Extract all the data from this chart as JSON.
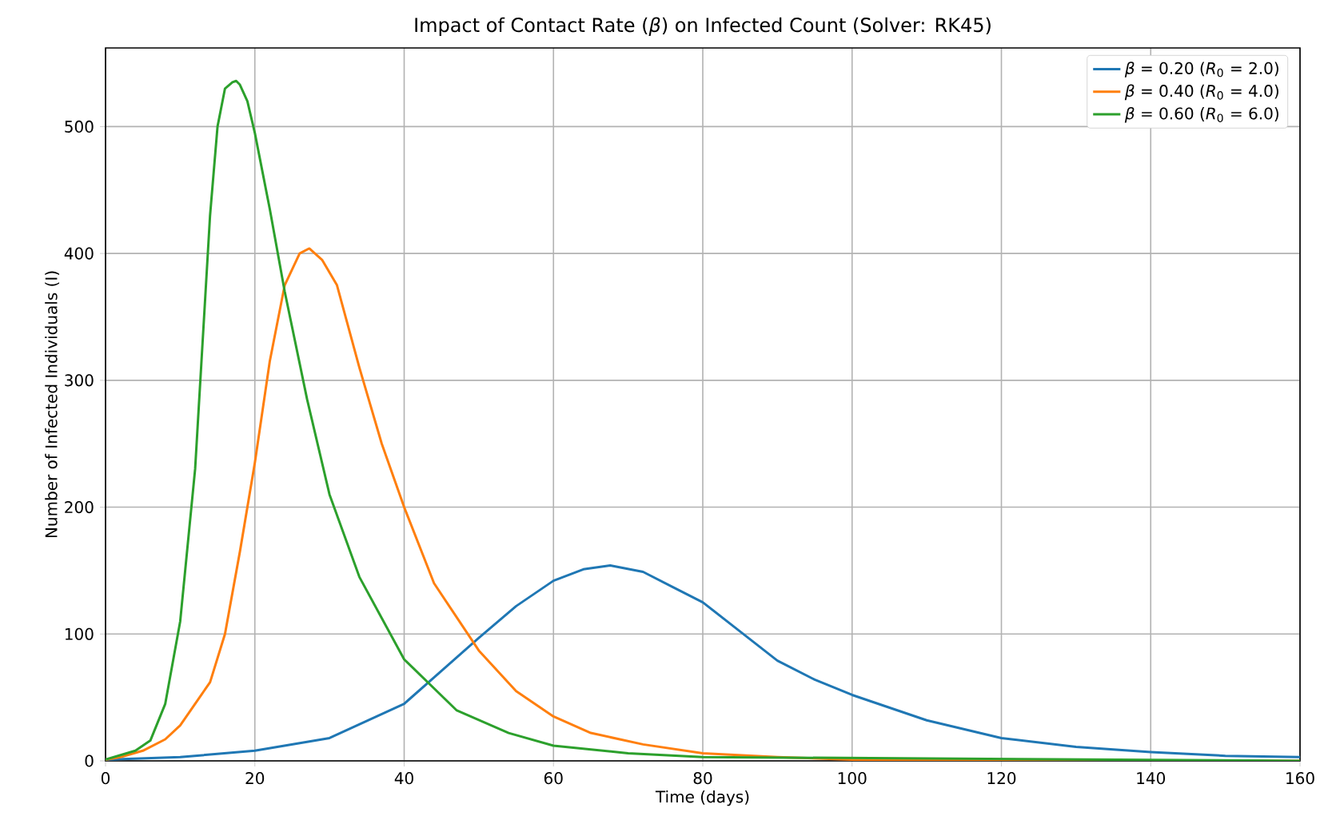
{
  "chart_data": {
    "type": "line",
    "title": "Impact of Contact Rate (*β*) on Infected Count (Solver: RK45)",
    "xlabel": "Time (days)",
    "ylabel": "Number of Infected Individuals (I)",
    "xlim": [
      0,
      160
    ],
    "ylim": [
      0,
      562
    ],
    "xticks": [
      0,
      20,
      40,
      60,
      80,
      100,
      120,
      140,
      160
    ],
    "yticks": [
      0,
      100,
      200,
      300,
      400,
      500
    ],
    "grid": true,
    "legend": "top right",
    "series": [
      {
        "name": "*β* = 0.20 (*R*$_{0}$ = 2.0)",
        "color": "#1f77b4",
        "x": [
          0,
          10,
          20,
          30,
          40,
          45,
          50,
          55,
          60,
          64,
          67.6,
          72,
          76,
          80,
          85,
          90,
          95,
          100,
          110,
          120,
          130,
          140,
          150,
          160
        ],
        "values": [
          1,
          3,
          8,
          18,
          45,
          71,
          97,
          122,
          142,
          151,
          154,
          149,
          137,
          125,
          102,
          79,
          64,
          52,
          32,
          18,
          11,
          7,
          4,
          3
        ]
      },
      {
        "name": "*β* = 0.40 (*R*$_{0}$ = 4.0)",
        "color": "#ff7f0e",
        "x": [
          0,
          2,
          5,
          8,
          10,
          12,
          14,
          16,
          18,
          20,
          22,
          24,
          26,
          27.3,
          29,
          31,
          34,
          37,
          40,
          44,
          50,
          55,
          60,
          65,
          72,
          80,
          90,
          100,
          160
        ],
        "values": [
          1,
          3,
          8,
          17,
          28,
          45,
          62,
          100,
          165,
          235,
          315,
          375,
          400,
          404,
          395,
          375,
          310,
          250,
          200,
          140,
          87,
          55,
          35,
          22,
          13,
          6,
          3,
          1,
          0
        ]
      },
      {
        "name": "*β* = 0.60 (*R*$_{0}$ = 6.0)",
        "color": "#2ca02c",
        "x": [
          0,
          4,
          6,
          8,
          10,
          12,
          13,
          14,
          15,
          16,
          17,
          17.5,
          18,
          19,
          20,
          22,
          24,
          27,
          30,
          34,
          40,
          47,
          54,
          60,
          70,
          80,
          160
        ],
        "values": [
          1,
          8,
          16,
          45,
          110,
          230,
          330,
          430,
          500,
          530,
          535,
          536,
          533,
          520,
          495,
          435,
          370,
          285,
          210,
          145,
          80,
          40,
          22,
          12,
          6,
          3,
          0
        ]
      }
    ]
  }
}
